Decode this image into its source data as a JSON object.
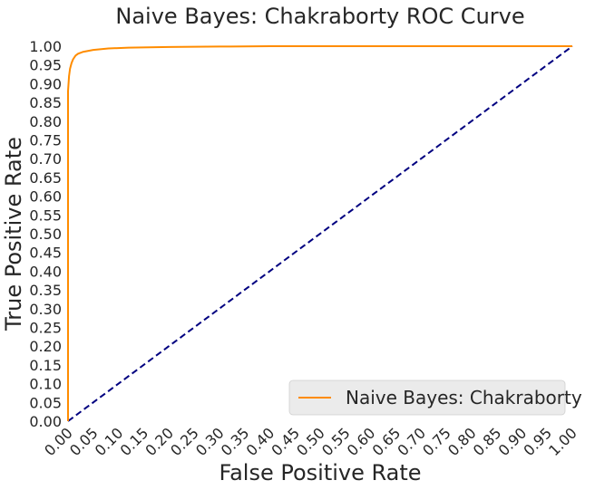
{
  "chart_data": {
    "type": "line",
    "title": "Naive Bayes: Chakraborty ROC Curve",
    "xlabel": "False Positive Rate",
    "ylabel": "True Positive Rate",
    "xlim": [
      0.0,
      1.0
    ],
    "ylim": [
      0.0,
      1.0
    ],
    "x_ticks": [
      "0.00",
      "0.05",
      "0.10",
      "0.15",
      "0.20",
      "0.25",
      "0.30",
      "0.35",
      "0.40",
      "0.45",
      "0.50",
      "0.55",
      "0.60",
      "0.65",
      "0.70",
      "0.75",
      "0.80",
      "0.85",
      "0.90",
      "0.95",
      "1.00"
    ],
    "y_ticks": [
      "0.00",
      "0.05",
      "0.10",
      "0.15",
      "0.20",
      "0.25",
      "0.30",
      "0.35",
      "0.40",
      "0.45",
      "0.50",
      "0.55",
      "0.60",
      "0.65",
      "0.70",
      "0.75",
      "0.80",
      "0.85",
      "0.90",
      "0.95",
      "1.00"
    ],
    "grid": false,
    "legend_position": "bottom-right",
    "series": [
      {
        "name": "Naive Bayes: Chakraborty",
        "color": "#ff8c00",
        "x": [
          0.0,
          0.0,
          0.0,
          0.002,
          0.004,
          0.007,
          0.01,
          0.015,
          0.02,
          0.03,
          0.05,
          0.08,
          0.12,
          0.2,
          0.3,
          0.4,
          0.6,
          0.8,
          1.0
        ],
        "y": [
          0.0,
          0.8,
          0.88,
          0.92,
          0.94,
          0.955,
          0.965,
          0.975,
          0.98,
          0.985,
          0.99,
          0.994,
          0.996,
          0.998,
          0.999,
          1.0,
          1.0,
          1.0,
          1.0
        ]
      }
    ],
    "reference_line": {
      "color": "#000080",
      "style": "dashed",
      "x": [
        0.0,
        1.0
      ],
      "y": [
        0.0,
        1.0
      ]
    }
  }
}
